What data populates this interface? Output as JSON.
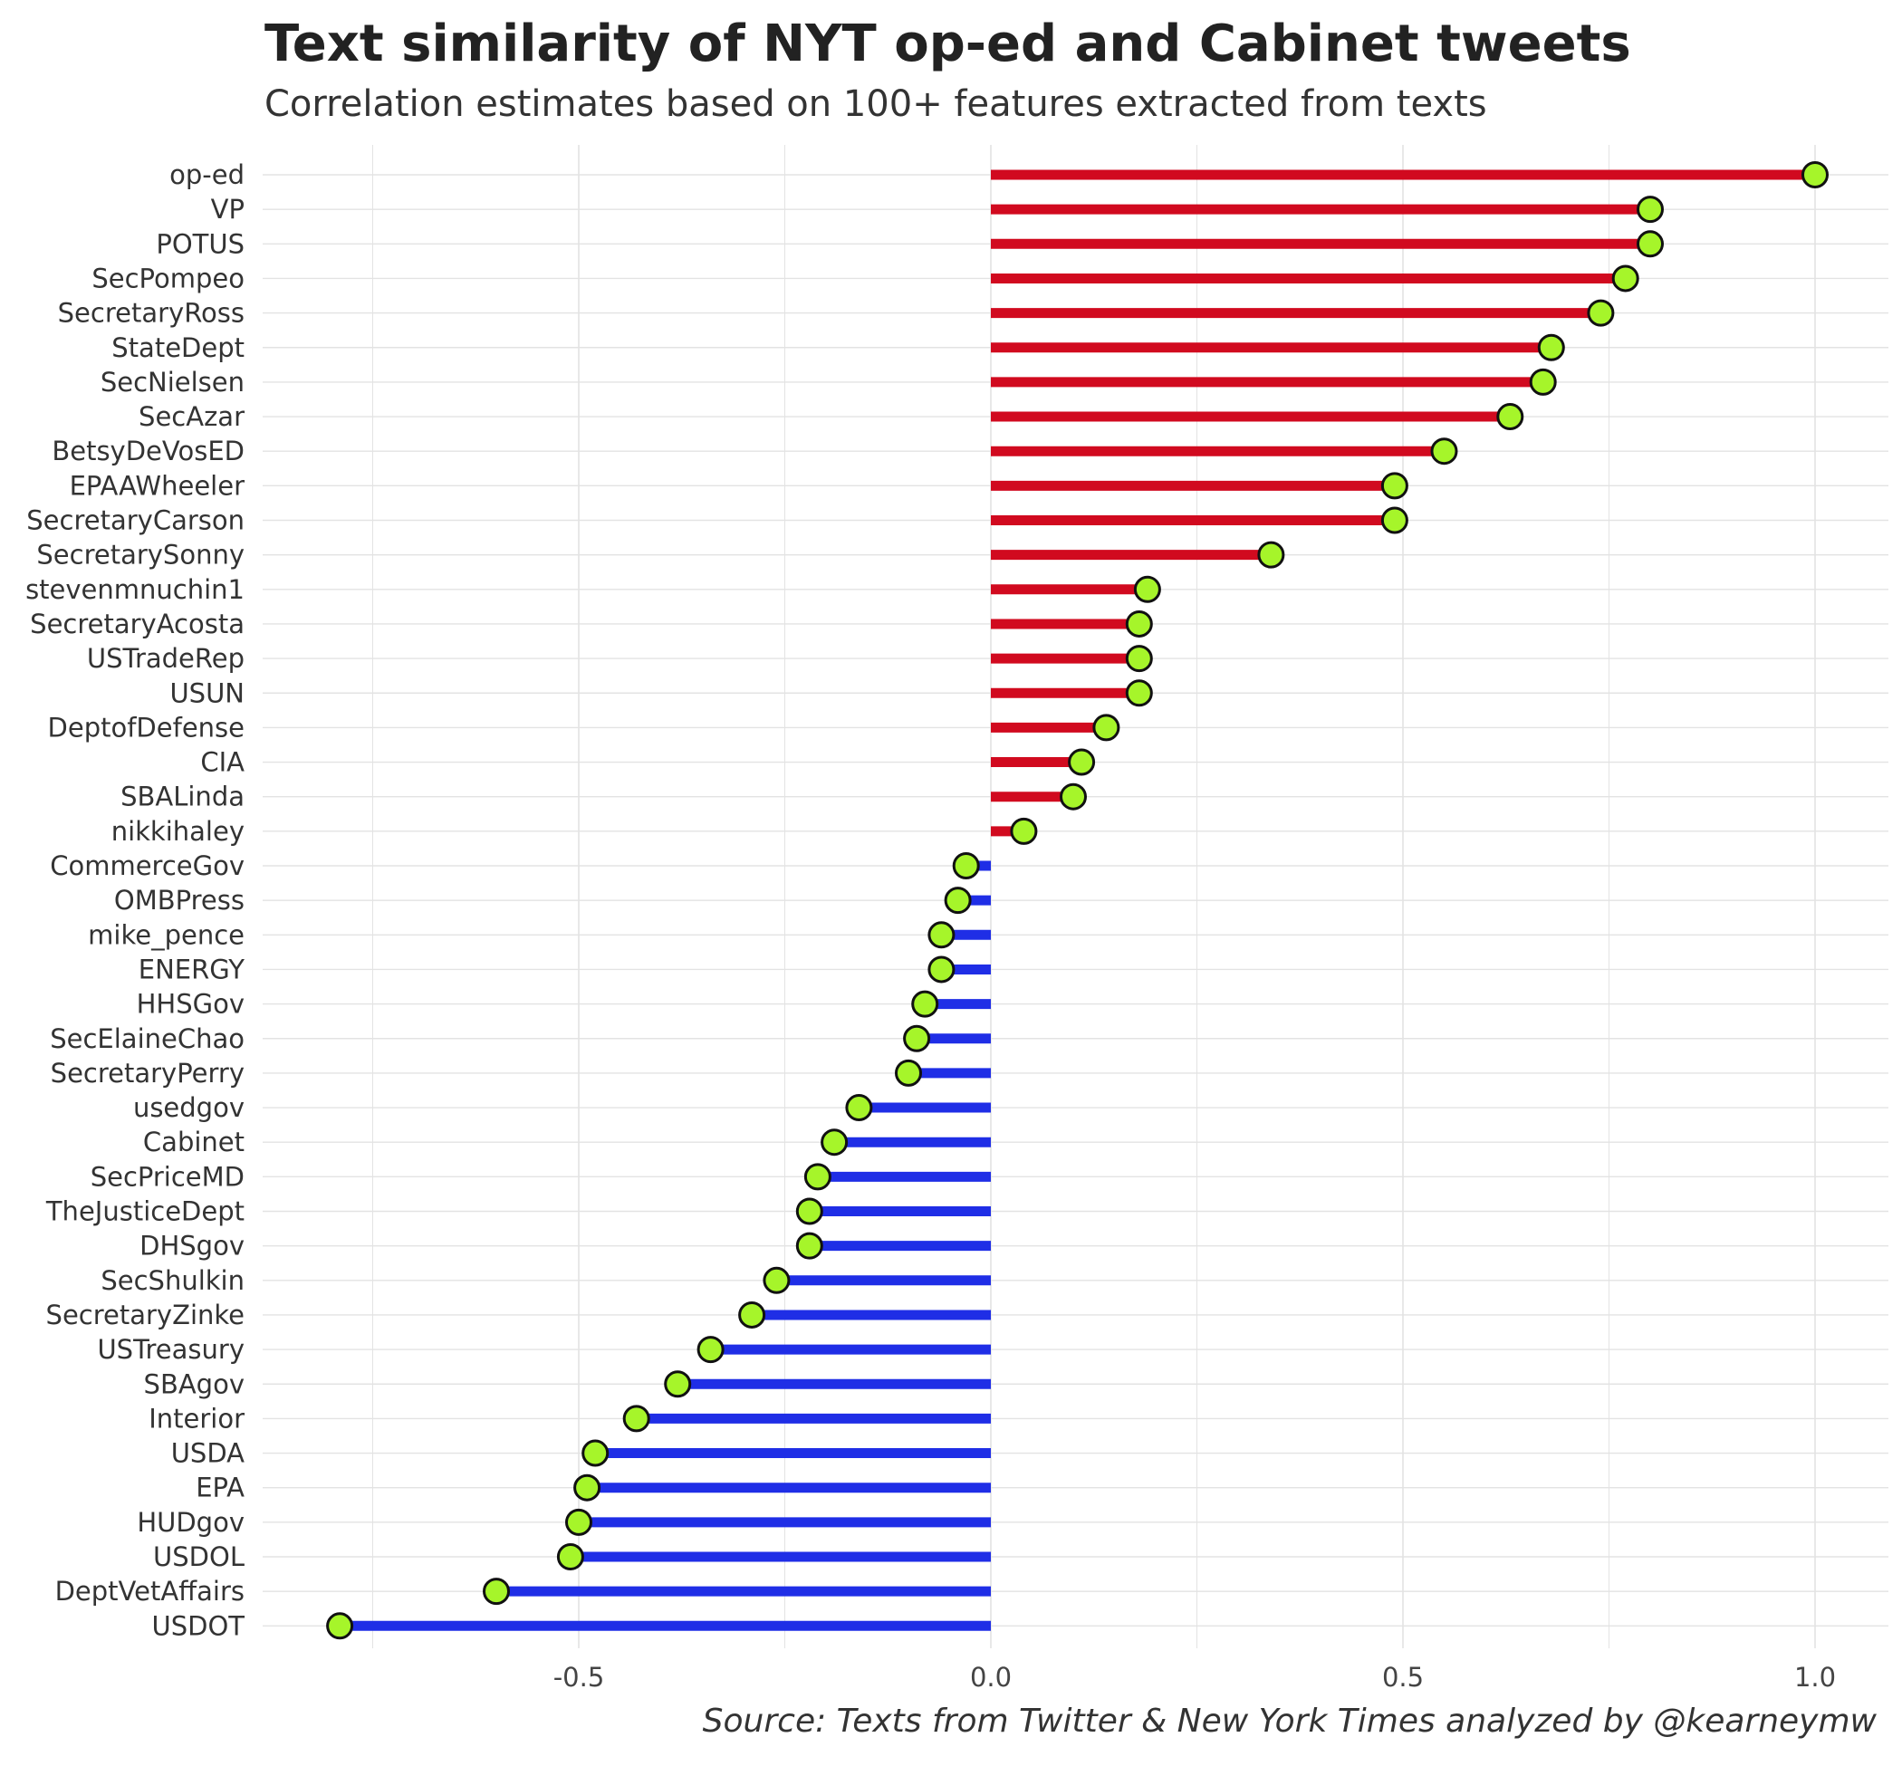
{
  "title": "Text similarity of NYT op-ed and Cabinet tweets",
  "subtitle": "Correlation estimates based on 100+ features extracted from texts",
  "caption": "Source: Texts from Twitter & New York Times analyzed by @kearneymw",
  "colors": {
    "positive": "#d10a1f",
    "negative": "#1f2ee6",
    "point_fill": "#a6f52a",
    "point_stroke": "#111111",
    "grid": "#e3e3e3"
  },
  "chart_data": {
    "type": "bar",
    "orientation": "horizontal",
    "style": "lollipop",
    "xlim": [
      -0.8,
      1.0
    ],
    "x_ticks": [
      -0.5,
      0.0,
      0.5,
      1.0
    ],
    "x_tick_labels": [
      "-0.5",
      "0.0",
      "0.5",
      "1.0"
    ],
    "grid": true,
    "categories": [
      "op-ed",
      "VP",
      "POTUS",
      "SecPompeo",
      "SecretaryRoss",
      "StateDept",
      "SecNielsen",
      "SecAzar",
      "BetsyDeVosED",
      "EPAAWheeler",
      "SecretaryCarson",
      "SecretarySonny",
      "stevenmnuchin1",
      "SecretaryAcosta",
      "USTradeRep",
      "USUN",
      "DeptofDefense",
      "CIA",
      "SBALinda",
      "nikkihaley",
      "CommerceGov",
      "OMBPress",
      "mike_pence",
      "ENERGY",
      "HHSGov",
      "SecElaineChao",
      "SecretaryPerry",
      "usedgov",
      "Cabinet",
      "SecPriceMD",
      "TheJusticeDept",
      "DHSgov",
      "SecShulkin",
      "SecretaryZinke",
      "USTreasury",
      "SBAgov",
      "Interior",
      "USDA",
      "EPA",
      "HUDgov",
      "USDOL",
      "DeptVetAffairs",
      "USDOT"
    ],
    "values": [
      1.0,
      0.8,
      0.8,
      0.77,
      0.74,
      0.68,
      0.67,
      0.63,
      0.55,
      0.49,
      0.49,
      0.34,
      0.19,
      0.18,
      0.18,
      0.18,
      0.14,
      0.11,
      0.1,
      0.04,
      -0.03,
      -0.04,
      -0.06,
      -0.06,
      -0.08,
      -0.09,
      -0.1,
      -0.16,
      -0.19,
      -0.21,
      -0.22,
      -0.22,
      -0.26,
      -0.29,
      -0.34,
      -0.38,
      -0.43,
      -0.48,
      -0.49,
      -0.5,
      -0.51,
      -0.6,
      -0.79
    ]
  }
}
